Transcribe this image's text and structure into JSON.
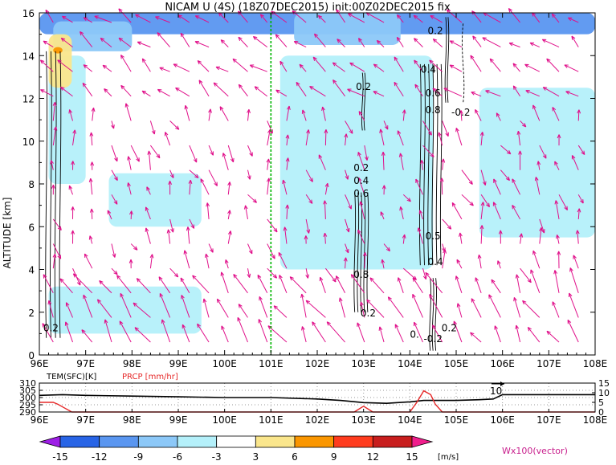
{
  "title": "NICAM U (4S) (18Z07DEC2015) init:00Z02DEC2015 fix",
  "main_plot": {
    "ylabel": "ALTITUDE [km]",
    "x_ticks": [
      "96E",
      "97E",
      "98E",
      "99E",
      "100E",
      "101E",
      "102E",
      "103E",
      "104E",
      "105E",
      "106E",
      "107E",
      "108E"
    ],
    "y_ticks": [
      "0",
      "2",
      "4",
      "6",
      "8",
      "10",
      "12",
      "14",
      "16"
    ],
    "contour_labels": [
      {
        "text": "0.2",
        "lon": 103.0,
        "alt": 12.4
      },
      {
        "text": "0.2",
        "lon": 104.55,
        "alt": 15.0
      },
      {
        "text": "0.4",
        "lon": 104.4,
        "alt": 13.2
      },
      {
        "text": "0.6",
        "lon": 104.5,
        "alt": 12.1
      },
      {
        "text": "0.8",
        "lon": 104.5,
        "alt": 11.3
      },
      {
        "text": "-0.2",
        "lon": 105.1,
        "alt": 11.2
      },
      {
        "text": "0.2",
        "lon": 102.95,
        "alt": 8.6
      },
      {
        "text": "0.4",
        "lon": 102.95,
        "alt": 8.0
      },
      {
        "text": "0.6",
        "lon": 102.95,
        "alt": 7.4
      },
      {
        "text": "0.5",
        "lon": 104.5,
        "alt": 5.4
      },
      {
        "text": "0.4",
        "lon": 104.55,
        "alt": 4.2
      },
      {
        "text": "0.8",
        "lon": 102.95,
        "alt": 3.6
      },
      {
        "text": "0.2",
        "lon": 103.1,
        "alt": 1.8
      },
      {
        "text": "0.2",
        "lon": 96.25,
        "alt": 1.1
      },
      {
        "text": "0.",
        "lon": 104.1,
        "alt": 0.8
      },
      {
        "text": "-0.2",
        "lon": 104.5,
        "alt": 0.6
      },
      {
        "text": "0.2",
        "lon": 104.85,
        "alt": 1.1
      }
    ]
  },
  "sub_plot": {
    "tem_label": "TEM(SFC)[K]",
    "prcp_label": "PRCP [mm/hr]",
    "left_ticks": [
      "310",
      "305",
      "300",
      "295",
      "290"
    ],
    "right_ticks": [
      "15",
      "10",
      "5",
      "0"
    ],
    "x_ticks": [
      "96E",
      "97E",
      "98E",
      "99E",
      "100E",
      "101E",
      "102E",
      "103E",
      "104E",
      "105E",
      "106E",
      "107E",
      "108E"
    ],
    "annotation": "10"
  },
  "colorbar": {
    "labels": [
      "-15",
      "-12",
      "-9",
      "-6",
      "-3",
      "3",
      "6",
      "9",
      "12",
      "15"
    ],
    "unit": "[m/s]",
    "colors": [
      "#9e1ee6",
      "#2864e6",
      "#5a96f0",
      "#8cc8f8",
      "#b4f0fa",
      "#ffffff",
      "#fae68c",
      "#fa9600",
      "#ff3c1e",
      "#c81e1e",
      "#f01e8c"
    ]
  },
  "vector_label": "Wx100(vector)",
  "colors": {
    "vector": "#e0108a",
    "marker_line": "#00b400",
    "prcp": "#e62828",
    "tem": "#000000"
  },
  "chart_data": [
    {
      "type": "heatmap",
      "title": "NICAM U (4S) (18Z07DEC2015) init:00Z02DEC2015 fix",
      "ylabel": "ALTITUDE [km]",
      "xlim": [
        96,
        108
      ],
      "ylim": [
        0,
        16
      ],
      "marker_lon": 101.0,
      "shaded_regions": [
        {
          "level": "-12to-9",
          "lon": [
            96,
            108
          ],
          "alt": [
            15.0,
            16.0
          ]
        },
        {
          "level": "-9to-6",
          "lon": [
            96.3,
            98.0
          ],
          "alt": [
            14.2,
            15.6
          ]
        },
        {
          "level": "-9to-6",
          "lon": [
            101.5,
            103.8
          ],
          "alt": [
            14.5,
            16.0
          ]
        },
        {
          "level": "-6to-3",
          "lon": [
            96.2,
            97.0
          ],
          "alt": [
            8.0,
            14.0
          ]
        },
        {
          "level": "-6to-3",
          "lon": [
            97.5,
            99.5
          ],
          "alt": [
            6.0,
            8.5
          ]
        },
        {
          "level": "-6to-3",
          "lon": [
            101.2,
            104.5
          ],
          "alt": [
            4.0,
            14.0
          ]
        },
        {
          "level": "-6to-3",
          "lon": [
            105.5,
            108.0
          ],
          "alt": [
            5.5,
            12.5
          ]
        },
        {
          "level": "-6to-3",
          "lon": [
            96.2,
            99.5
          ],
          "alt": [
            1.0,
            3.2
          ]
        },
        {
          "level": "-3to3",
          "lon": [
            96.0,
            108.0
          ],
          "alt": [
            0.0,
            16.0
          ]
        },
        {
          "level": "3to6",
          "lon": [
            96.2,
            96.7
          ],
          "alt": [
            12.5,
            15.0
          ]
        },
        {
          "level": "6to9",
          "lon": [
            96.3,
            96.5
          ],
          "alt": [
            14.1,
            14.4
          ]
        }
      ],
      "vectors": "wind vectors (u, w x100) on a regular lon-alt grid, magenta"
    },
    {
      "type": "line",
      "xlim": [
        96,
        108
      ],
      "series": [
        {
          "name": "TEM(SFC)[K]",
          "axis": "left",
          "ylim": [
            290,
            310
          ],
          "x": [
            96.0,
            96.5,
            97.0,
            98.0,
            99.0,
            100.0,
            101.0,
            102.0,
            102.5,
            103.0,
            103.5,
            104.0,
            104.3,
            104.6,
            105.0,
            105.5,
            105.8,
            106.0,
            106.5,
            107.0,
            108.0
          ],
          "y": [
            301.5,
            302,
            301.5,
            301,
            300.5,
            300,
            300,
            299,
            298,
            296.5,
            296,
            297,
            298,
            298,
            298,
            298.5,
            299,
            302,
            302,
            302,
            302
          ]
        },
        {
          "name": "PRCP [mm/hr]",
          "axis": "right",
          "ylim": [
            0,
            15
          ],
          "x": [
            96.0,
            96.3,
            96.4,
            96.55,
            96.7,
            97.0,
            102.8,
            102.9,
            103.0,
            103.1,
            103.2,
            104.0,
            104.15,
            104.3,
            104.45,
            104.55,
            104.7,
            105.0,
            108.0
          ],
          "y": [
            5,
            5,
            4,
            2,
            0,
            0,
            0,
            1.5,
            3,
            1.5,
            0,
            0,
            5,
            11,
            9,
            4,
            0,
            0,
            0
          ]
        }
      ]
    }
  ]
}
